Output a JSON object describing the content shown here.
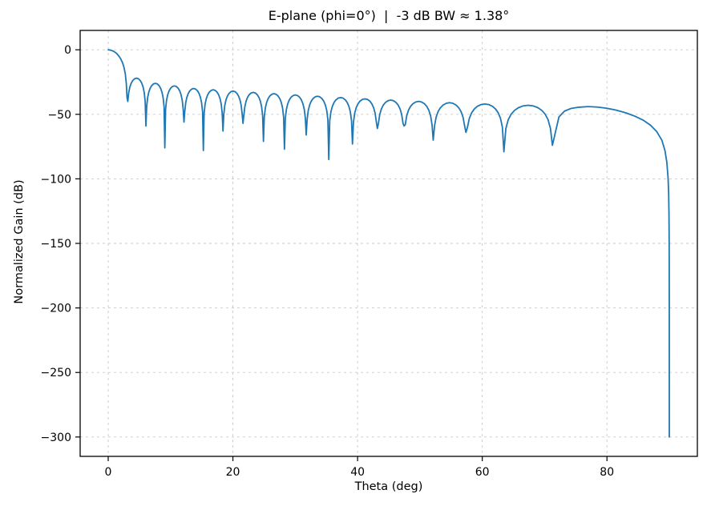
{
  "figure": {
    "background": "#ffffff"
  },
  "chart_data": {
    "type": "line",
    "title": "E-plane (phi=0°)  |  -3 dB BW ≈ 1.38°",
    "xlabel": "Theta (deg)",
    "ylabel": "Normalized Gain (dB)",
    "xlim": [
      -4.5,
      94.5
    ],
    "ylim": [
      -315,
      15
    ],
    "xticks": [
      0,
      20,
      40,
      60,
      80
    ],
    "yticks": [
      0,
      -50,
      -100,
      -150,
      -200,
      -250,
      -300
    ],
    "grid": {
      "visible": true,
      "line_style": "dashed",
      "color": "#c9c9c9"
    },
    "legend": "none",
    "line_color": "#1f77b4",
    "line_width": 1.8,
    "beamwidth_minus3db_deg": 1.38,
    "series": [
      {
        "name": "E-plane normalized gain",
        "main_lobe": [
          [
            0,
            0
          ],
          [
            0.4,
            -0.3
          ],
          [
            0.8,
            -1.0
          ],
          [
            1.1,
            -1.9
          ],
          [
            1.38,
            -3
          ],
          [
            1.7,
            -4.8
          ],
          [
            2.0,
            -7
          ],
          [
            2.3,
            -10
          ],
          [
            2.55,
            -14
          ],
          [
            2.75,
            -19
          ],
          [
            2.9,
            -26
          ]
        ],
        "nulls": [
          {
            "theta": 3.02,
            "db": -37
          },
          {
            "theta": 6.05,
            "db": -59
          },
          {
            "theta": 9.08,
            "db": -76
          },
          {
            "theta": 12.15,
            "db": -56
          },
          {
            "theta": 15.26,
            "db": -78
          },
          {
            "theta": 18.41,
            "db": -63
          },
          {
            "theta": 21.62,
            "db": -57
          },
          {
            "theta": 24.9,
            "db": -71
          },
          {
            "theta": 28.27,
            "db": -77
          },
          {
            "theta": 31.76,
            "db": -66
          },
          {
            "theta": 35.38,
            "db": -85
          },
          {
            "theta": 39.18,
            "db": -73
          },
          {
            "theta": 43.17,
            "db": -61
          },
          {
            "theta": 47.46,
            "db": -59
          },
          {
            "theta": 52.13,
            "db": -70
          },
          {
            "theta": 57.38,
            "db": -64
          },
          {
            "theta": 63.47,
            "db": -79
          },
          {
            "theta": 71.25,
            "db": -74
          }
        ],
        "lobe_peaks": [
          {
            "theta": 4.5,
            "db": -22
          },
          {
            "theta": 7.5,
            "db": -26
          },
          {
            "theta": 10.6,
            "db": -28
          },
          {
            "theta": 13.7,
            "db": -30
          },
          {
            "theta": 16.8,
            "db": -31
          },
          {
            "theta": 20.0,
            "db": -32
          },
          {
            "theta": 23.2,
            "db": -33
          },
          {
            "theta": 26.6,
            "db": -34
          },
          {
            "theta": 30.0,
            "db": -35
          },
          {
            "theta": 33.5,
            "db": -36
          },
          {
            "theta": 37.3,
            "db": -37
          },
          {
            "theta": 41.1,
            "db": -38
          },
          {
            "theta": 45.3,
            "db": -39
          },
          {
            "theta": 49.7,
            "db": -40
          },
          {
            "theta": 54.7,
            "db": -41
          },
          {
            "theta": 60.3,
            "db": -42
          },
          {
            "theta": 67.2,
            "db": -43
          }
        ],
        "tail": [
          [
            72.3,
            -52
          ],
          [
            73.2,
            -47.5
          ],
          [
            74.2,
            -45.5
          ],
          [
            75.5,
            -44.5
          ],
          [
            77,
            -44
          ],
          [
            78.5,
            -44.4
          ],
          [
            80,
            -45.3
          ],
          [
            81.5,
            -46.8
          ],
          [
            83,
            -48.8
          ],
          [
            84.5,
            -51.5
          ],
          [
            85.8,
            -54.5
          ],
          [
            87,
            -58.5
          ],
          [
            88,
            -63.5
          ],
          [
            88.8,
            -70
          ],
          [
            89.3,
            -78
          ],
          [
            89.6,
            -87
          ],
          [
            89.8,
            -99
          ],
          [
            89.9,
            -112
          ],
          [
            89.95,
            -128
          ],
          [
            89.98,
            -150
          ],
          [
            89.995,
            -190
          ],
          [
            90,
            -300
          ]
        ]
      }
    ]
  }
}
